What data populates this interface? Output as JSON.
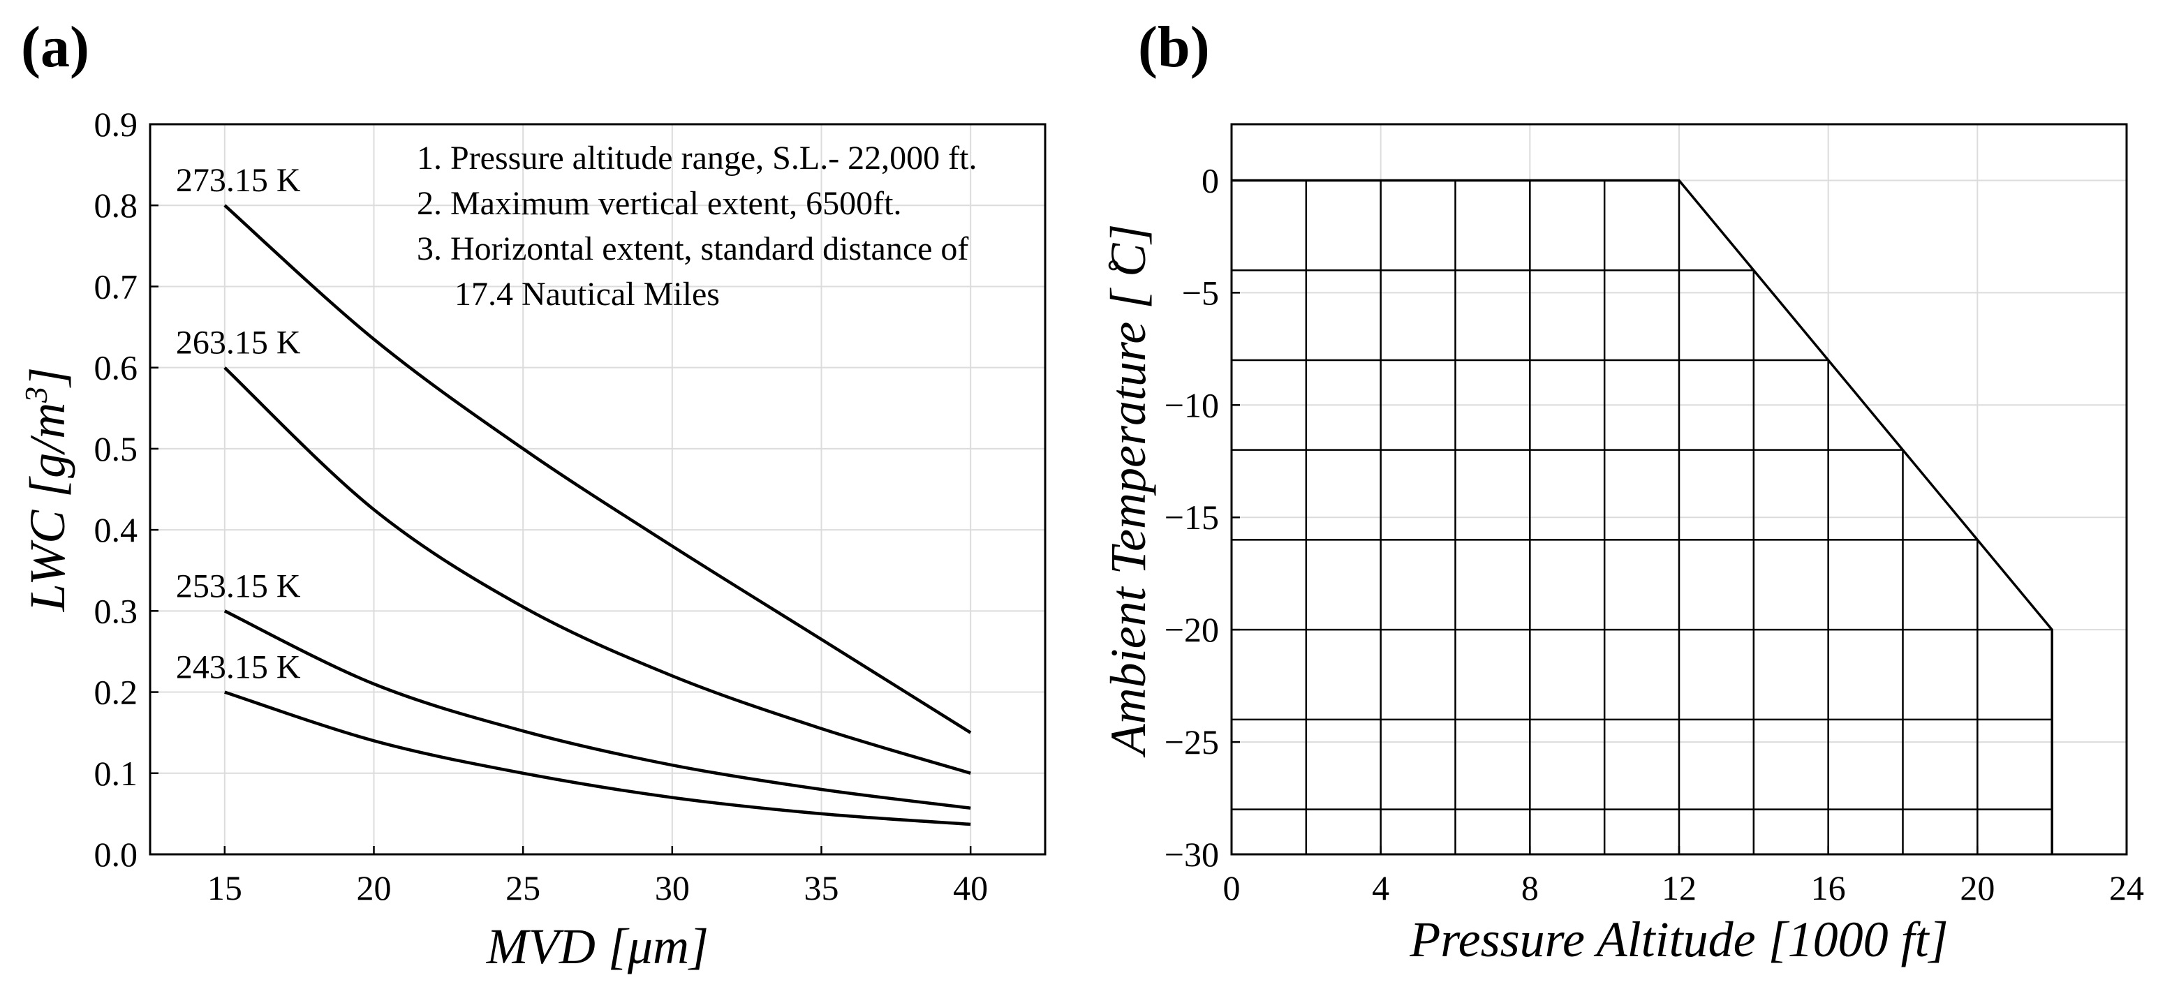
{
  "chart_data": [
    {
      "panel": "(a)",
      "type": "line",
      "xlabel": "MVD [μm]",
      "ylabel_main": "LWC [g/m",
      "ylabel_sup": "3",
      "ylabel_end": "]",
      "xlim": [
        12.5,
        42.5
      ],
      "ylim": [
        0.0,
        0.9
      ],
      "xticks": [
        15,
        20,
        25,
        30,
        35,
        40
      ],
      "yticks": [
        "0.0",
        "0.1",
        "0.2",
        "0.3",
        "0.4",
        "0.5",
        "0.6",
        "0.7",
        "0.8",
        "0.9"
      ],
      "grid": true,
      "notes": [
        "1. Pressure altitude range, S.L.- 22,000 ft.",
        "2. Maximum vertical extent, 6500ft.",
        "3. Horizontal extent, standard distance of",
        "17.4 Nautical Miles"
      ],
      "series": [
        {
          "name": "273.15 K",
          "x": [
            15,
            20,
            25,
            30,
            35,
            40
          ],
          "values": [
            0.8,
            0.635,
            0.5,
            0.38,
            0.265,
            0.15
          ]
        },
        {
          "name": "263.15 K",
          "x": [
            15,
            20,
            25,
            30,
            35,
            40
          ],
          "values": [
            0.6,
            0.425,
            0.305,
            0.22,
            0.155,
            0.1
          ]
        },
        {
          "name": "253.15 K",
          "x": [
            15,
            20,
            25,
            30,
            35,
            40
          ],
          "values": [
            0.3,
            0.21,
            0.152,
            0.11,
            0.08,
            0.057
          ]
        },
        {
          "name": "243.15 K",
          "x": [
            15,
            20,
            25,
            30,
            35,
            40
          ],
          "values": [
            0.2,
            0.14,
            0.1,
            0.07,
            0.05,
            0.037
          ]
        }
      ]
    },
    {
      "panel": "(b)",
      "type": "area",
      "xlabel": "Pressure Altitude [1000 ft]",
      "ylabel": "Ambient Temperature [ ̊C]",
      "xlim": [
        0,
        24
      ],
      "ylim": [
        -30,
        2.5
      ],
      "xticks": [
        "0",
        "4",
        "8",
        "12",
        "16",
        "20",
        "24"
      ],
      "yticks": [
        "0",
        "−5",
        "−10",
        "−15",
        "−20",
        "−25",
        "−30"
      ],
      "grid": true,
      "envelope": {
        "x": [
          0,
          12,
          22,
          22
        ],
        "values": [
          0,
          0,
          -20,
          -30
        ]
      },
      "cell_verticals_x": [
        2,
        4,
        6,
        8,
        10,
        12,
        14,
        16,
        18,
        20,
        22
      ],
      "cell_horizontals_y": [
        -4,
        -8,
        -12,
        -16,
        -20,
        -24,
        -28
      ]
    }
  ]
}
